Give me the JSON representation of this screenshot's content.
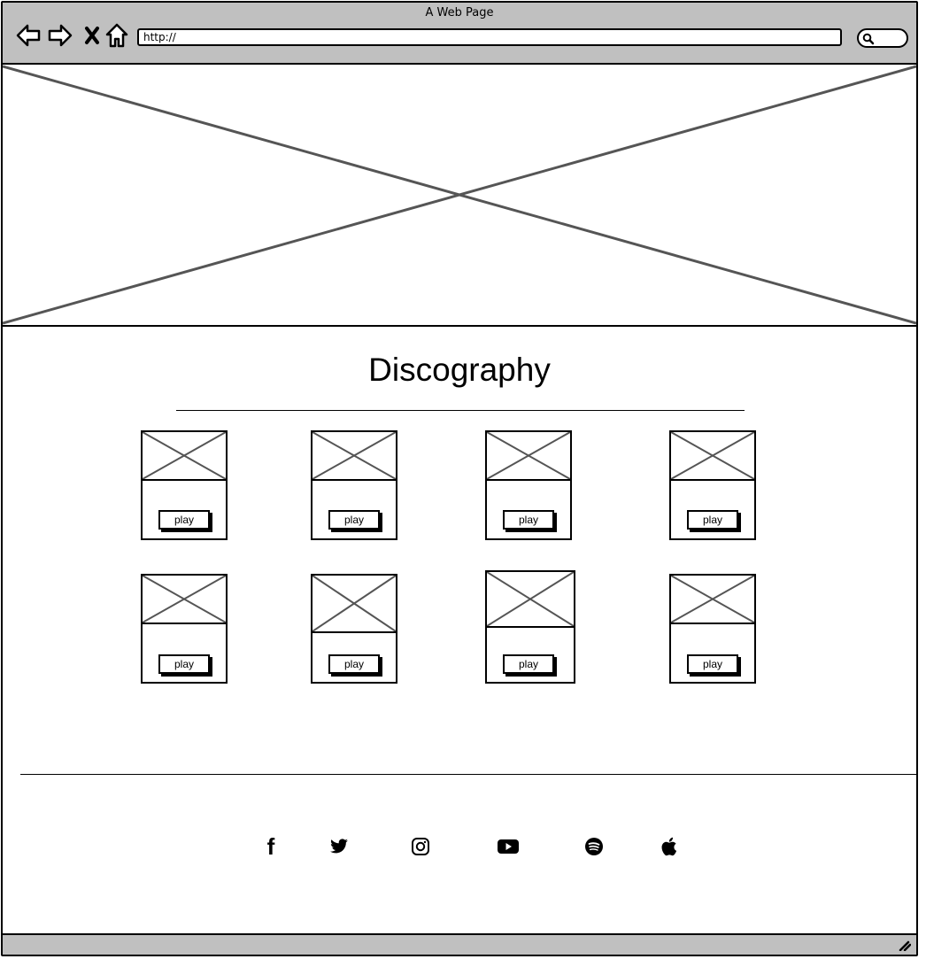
{
  "window": {
    "title": "A Web Page"
  },
  "toolbar": {
    "back_icon": "back-arrow-icon",
    "forward_icon": "forward-arrow-icon",
    "stop_icon": "close-icon",
    "home_icon": "home-icon",
    "url_value": "http://",
    "search_icon": "search-icon"
  },
  "hero": {
    "image_icon": "image-placeholder-icon"
  },
  "discography": {
    "title": "Discography",
    "albums": [
      {
        "play_label": "play"
      },
      {
        "play_label": "play"
      },
      {
        "play_label": "play"
      },
      {
        "play_label": "play"
      },
      {
        "play_label": "play"
      },
      {
        "play_label": "play"
      },
      {
        "play_label": "play"
      },
      {
        "play_label": "play"
      }
    ]
  },
  "footer": {
    "social": [
      {
        "icon": "facebook-icon",
        "glyph": "f"
      },
      {
        "icon": "twitter-icon",
        "glyph": ""
      },
      {
        "icon": "instagram-icon",
        "glyph": ""
      },
      {
        "icon": "youtube-icon",
        "glyph": ""
      },
      {
        "icon": "spotify-icon",
        "glyph": ""
      },
      {
        "icon": "apple-icon",
        "glyph": ""
      }
    ]
  }
}
